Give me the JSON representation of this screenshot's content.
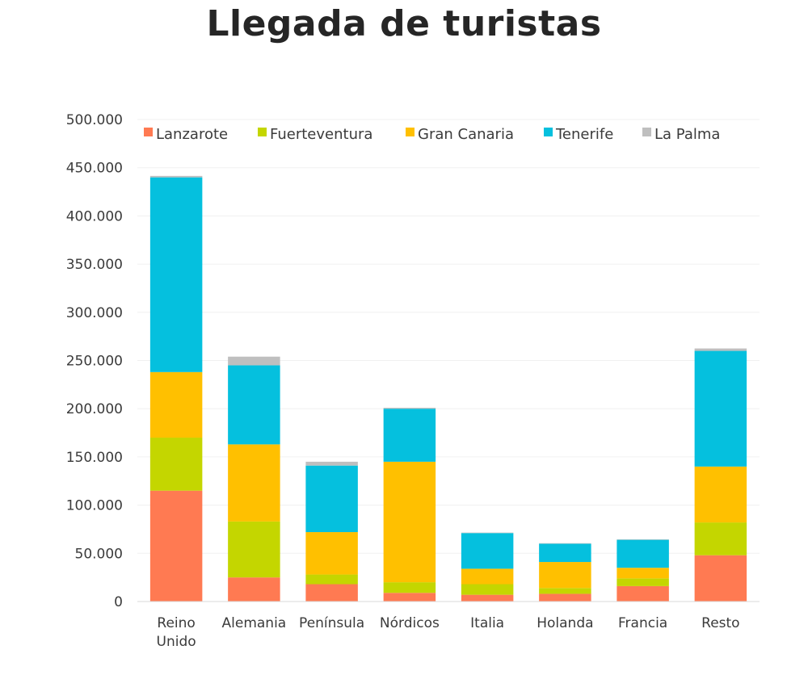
{
  "chart_data": {
    "type": "bar",
    "stacked": true,
    "title": "Llegada de turistas",
    "categories": [
      [
        "Reino",
        "Unido"
      ],
      [
        "Alemania"
      ],
      [
        "Península"
      ],
      [
        "Nórdicos"
      ],
      [
        "Italia"
      ],
      [
        "Holanda"
      ],
      [
        "Francia"
      ],
      [
        "Resto"
      ]
    ],
    "ylim": [
      0,
      500000
    ],
    "yticks": [
      0,
      50000,
      100000,
      150000,
      200000,
      250000,
      300000,
      350000,
      400000,
      450000,
      500000
    ],
    "ytick_labels": [
      "0",
      "50.000",
      "100.000",
      "150.000",
      "200.000",
      "250.000",
      "300.000",
      "350.000",
      "400.000",
      "450.000",
      "500.000"
    ],
    "grid": true,
    "legend_position": "top",
    "series": [
      {
        "name": "Lanzarote",
        "color": "#ff7a52",
        "values": [
          115000,
          25000,
          18000,
          9000,
          7000,
          8000,
          16000,
          48000
        ]
      },
      {
        "name": "Fuerteventura",
        "color": "#c4d600",
        "values": [
          55000,
          58000,
          10000,
          11000,
          11000,
          6000,
          8000,
          34000
        ]
      },
      {
        "name": "Gran Canaria",
        "color": "#ffc000",
        "values": [
          68000,
          80000,
          44000,
          125000,
          16000,
          27000,
          11000,
          58000
        ]
      },
      {
        "name": "Tenerife",
        "color": "#05c0de",
        "values": [
          202000,
          82000,
          69000,
          55000,
          37000,
          19000,
          29000,
          120000
        ]
      },
      {
        "name": "La Palma",
        "color": "#bfbfbf",
        "values": [
          1500,
          9000,
          4000,
          1000,
          500,
          500,
          500,
          2500
        ]
      }
    ]
  }
}
